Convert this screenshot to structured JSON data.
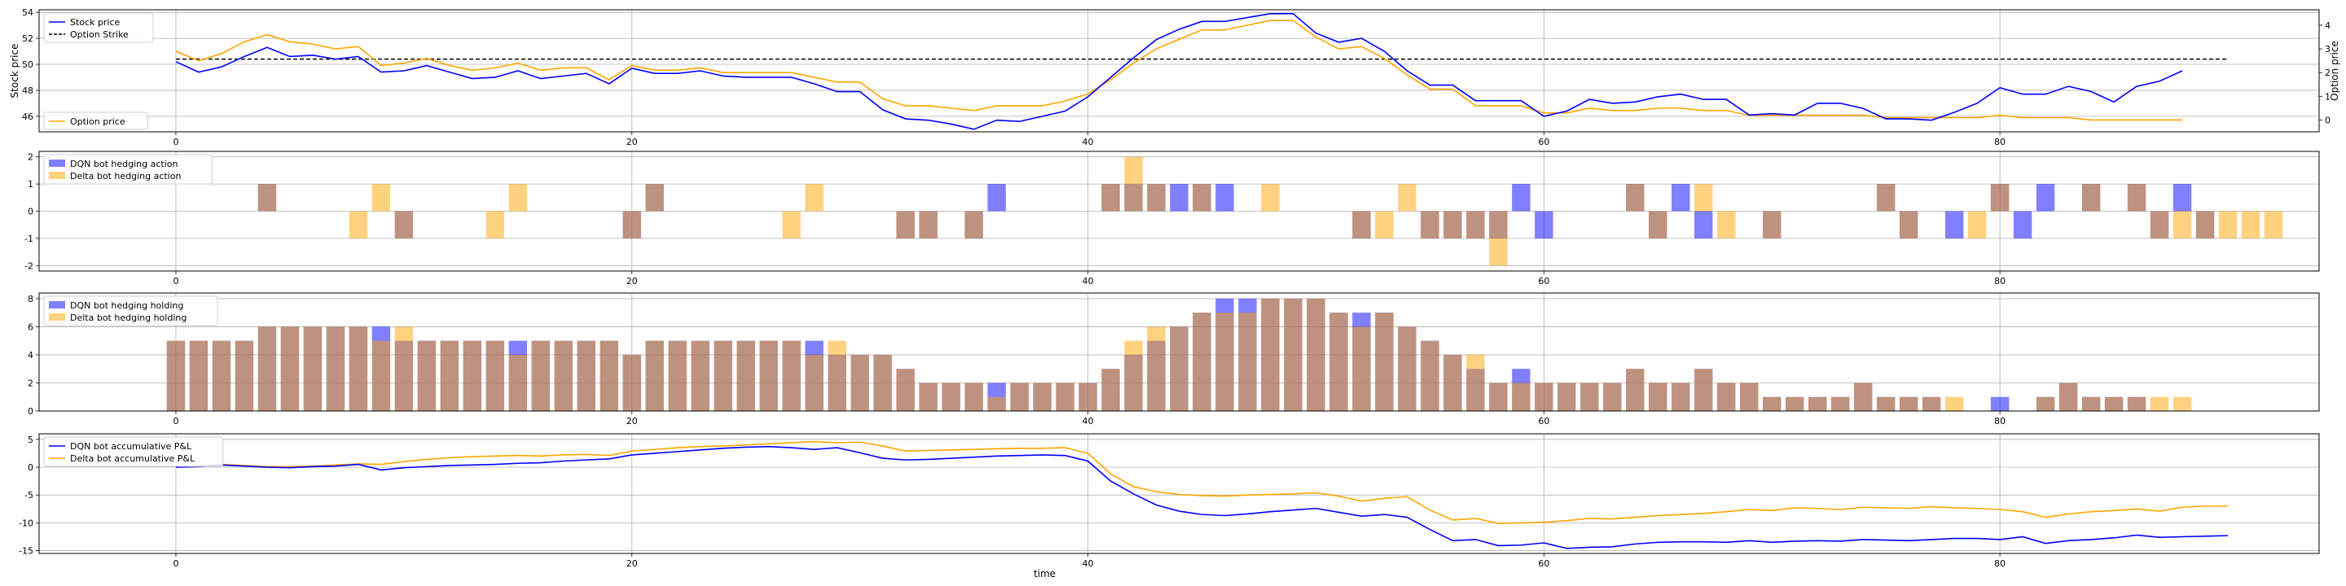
{
  "figure": {
    "type": "multi-panel time series"
  },
  "colors": {
    "dqn": "#0000ff",
    "delta": "#ffa500",
    "overlap": "#c19580",
    "strike": "#000000",
    "grid": "#b0b0b0"
  },
  "chart_data": [
    {
      "type": "line",
      "id": "price",
      "ylabel": "Stock price",
      "ylabel_right": "Option price",
      "xlim": [
        -6,
        94
      ],
      "ylim": [
        44.8,
        54.2
      ],
      "ylim_right": [
        -0.5,
        4.65
      ],
      "yticks": [
        46,
        48,
        50,
        52,
        54
      ],
      "yticks_right": [
        0,
        1,
        2,
        3,
        4
      ],
      "xticks": [
        0,
        20,
        40,
        60,
        80
      ],
      "grid": true,
      "legend_top": [
        "Stock price",
        "Option Strike"
      ],
      "legend_bottom": [
        "Option price"
      ],
      "strike": {
        "value": 50.4,
        "x_range": [
          0,
          90
        ]
      },
      "series": [
        {
          "name": "Stock price",
          "axis": "left",
          "color": "#0000ff",
          "values": [
            50.2,
            49.4,
            49.8,
            50.6,
            51.3,
            50.6,
            50.7,
            50.4,
            50.6,
            49.4,
            49.5,
            49.9,
            49.4,
            48.9,
            49.0,
            49.5,
            48.9,
            49.1,
            49.3,
            48.5,
            49.7,
            49.3,
            49.3,
            49.5,
            49.1,
            49.0,
            49.0,
            49.0,
            48.5,
            47.9,
            47.9,
            46.5,
            45.8,
            45.7,
            45.4,
            45.0,
            45.7,
            45.6,
            46.0,
            46.4,
            47.5,
            49.0,
            50.5,
            51.9,
            52.7,
            53.3,
            53.3,
            53.6,
            53.9,
            53.9,
            52.4,
            51.7,
            52.0,
            51.0,
            49.5,
            48.4,
            48.4,
            47.2,
            47.2,
            47.2,
            46.0,
            46.4,
            47.3,
            47.0,
            47.1,
            47.5,
            47.7,
            47.3,
            47.3,
            46.1,
            46.2,
            46.1,
            47.0,
            47.0,
            46.6,
            45.8,
            45.8,
            45.7,
            46.3,
            47.0,
            48.2,
            47.7,
            47.7,
            48.3,
            47.9,
            47.1,
            48.3,
            48.7,
            49.5
          ]
        },
        {
          "name": "Option price",
          "axis": "right",
          "color": "#ffa500",
          "values": [
            2.9,
            2.5,
            2.8,
            3.3,
            3.6,
            3.3,
            3.2,
            3.0,
            3.1,
            2.3,
            2.4,
            2.6,
            2.3,
            2.1,
            2.2,
            2.4,
            2.1,
            2.2,
            2.2,
            1.7,
            2.3,
            2.1,
            2.1,
            2.2,
            2.0,
            2.0,
            2.0,
            2.0,
            1.8,
            1.6,
            1.6,
            0.9,
            0.6,
            0.6,
            0.5,
            0.4,
            0.6,
            0.6,
            0.6,
            0.8,
            1.1,
            1.7,
            2.4,
            3.0,
            3.4,
            3.8,
            3.8,
            4.0,
            4.2,
            4.2,
            3.5,
            3.0,
            3.1,
            2.6,
            1.9,
            1.3,
            1.3,
            0.6,
            0.6,
            0.6,
            0.3,
            0.3,
            0.5,
            0.4,
            0.4,
            0.5,
            0.5,
            0.4,
            0.4,
            0.2,
            0.2,
            0.2,
            0.2,
            0.2,
            0.2,
            0.1,
            0.1,
            0.1,
            0.1,
            0.1,
            0.2,
            0.1,
            0.1,
            0.1,
            0.0,
            0.0,
            0.0,
            0.0,
            0.0
          ]
        }
      ]
    },
    {
      "type": "bar",
      "id": "actions",
      "xlim": [
        -6,
        94
      ],
      "ylim": [
        -2.2,
        2.2
      ],
      "yticks": [
        -2,
        -1,
        0,
        1,
        2
      ],
      "xticks": [
        0,
        20,
        40,
        60,
        80
      ],
      "grid": true,
      "legend": [
        "DQN bot hedging action",
        "Delta bot hedging action"
      ],
      "series": [
        {
          "name": "DQN bot hedging action",
          "color": "#0000ff",
          "values": [
            0,
            0,
            0,
            0,
            1,
            0,
            0,
            0,
            0,
            0,
            -1,
            0,
            0,
            0,
            0,
            0,
            0,
            0,
            0,
            0,
            -1,
            1,
            0,
            0,
            0,
            0,
            0,
            0,
            0,
            0,
            0,
            0,
            -1,
            -1,
            0,
            -1,
            1,
            0,
            0,
            0,
            0,
            1,
            1,
            1,
            1,
            1,
            1,
            0,
            0,
            0,
            0,
            0,
            -1,
            0,
            0,
            -1,
            -1,
            -1,
            -1,
            1,
            -1,
            0,
            0,
            0,
            1,
            -1,
            1,
            -1,
            0,
            0,
            -1,
            0,
            0,
            0,
            0,
            1,
            -1,
            0,
            -1,
            0,
            1,
            -1,
            1,
            0,
            1,
            0,
            1,
            -1,
            1,
            -1,
            0,
            0,
            0,
            0,
            0,
            0,
            0,
            0,
            0,
            0,
            0,
            0,
            0,
            0,
            0
          ]
        },
        {
          "name": "Delta bot hedging action",
          "color": "#ffa500",
          "values": [
            0,
            0,
            0,
            0,
            1,
            0,
            0,
            0,
            -1,
            1,
            -1,
            0,
            0,
            0,
            -1,
            1,
            0,
            0,
            0,
            0,
            -1,
            1,
            0,
            0,
            0,
            0,
            0,
            -1,
            1,
            0,
            0,
            0,
            -1,
            -1,
            0,
            -1,
            0,
            0,
            0,
            0,
            0,
            1,
            2,
            1,
            0,
            1,
            0,
            0,
            1,
            0,
            0,
            0,
            -1,
            -1,
            1,
            -1,
            -1,
            -1,
            -2,
            0,
            0,
            0,
            0,
            0,
            1,
            -1,
            0,
            1,
            -1,
            0,
            -1,
            0,
            0,
            0,
            0,
            1,
            -1,
            0,
            0,
            -1,
            1,
            0,
            0,
            0,
            1,
            0,
            1,
            -1,
            -1,
            -1,
            -1,
            -1,
            -1,
            0,
            0,
            0,
            0,
            0,
            0,
            0,
            0,
            0,
            0,
            0,
            0
          ]
        }
      ]
    },
    {
      "type": "bar",
      "id": "holdings",
      "xlim": [
        -6,
        94
      ],
      "ylim": [
        0,
        8.4
      ],
      "yticks": [
        0,
        2,
        4,
        6,
        8
      ],
      "xticks": [
        0,
        20,
        40,
        60,
        80
      ],
      "grid": true,
      "legend": [
        "DQN bot hedging holding",
        "Delta bot hedging holding"
      ],
      "series": [
        {
          "name": "DQN bot hedging holding",
          "color": "#0000ff",
          "values": [
            5,
            5,
            5,
            5,
            6,
            6,
            6,
            6,
            6,
            6,
            5,
            5,
            5,
            5,
            5,
            5,
            5,
            5,
            5,
            5,
            4,
            5,
            5,
            5,
            5,
            5,
            5,
            5,
            5,
            4,
            4,
            4,
            3,
            2,
            2,
            2,
            2,
            2,
            2,
            2,
            2,
            3,
            4,
            5,
            6,
            7,
            8,
            8,
            8,
            8,
            8,
            7,
            7,
            7,
            6,
            5,
            4,
            3,
            2,
            3,
            2,
            2,
            2,
            2,
            3,
            2,
            2,
            3,
            2,
            2,
            1,
            1,
            1,
            1,
            2,
            1,
            1,
            1,
            0,
            0,
            1,
            0,
            1,
            2,
            1,
            1,
            1,
            0,
            0,
            0
          ]
        },
        {
          "name": "Delta bot hedging holding",
          "color": "#ffa500",
          "values": [
            5,
            5,
            5,
            5,
            6,
            6,
            6,
            6,
            6,
            5,
            6,
            5,
            5,
            5,
            5,
            4,
            5,
            5,
            5,
            5,
            4,
            5,
            5,
            5,
            5,
            5,
            5,
            5,
            4,
            5,
            4,
            4,
            3,
            2,
            2,
            2,
            1,
            2,
            2,
            2,
            2,
            3,
            5,
            6,
            6,
            7,
            7,
            7,
            8,
            8,
            8,
            7,
            6,
            7,
            6,
            5,
            4,
            4,
            2,
            2,
            2,
            2,
            2,
            2,
            3,
            2,
            2,
            3,
            2,
            2,
            1,
            1,
            1,
            1,
            2,
            1,
            1,
            1,
            1,
            0,
            0,
            0,
            1,
            2,
            1,
            1,
            1,
            1,
            1,
            0
          ]
        }
      ]
    },
    {
      "type": "line",
      "id": "pnl",
      "xlabel": "time",
      "xlim": [
        -6,
        94
      ],
      "ylim": [
        -15.5,
        6.0
      ],
      "yticks": [
        -15,
        -10,
        -5,
        0,
        5
      ],
      "xticks": [
        0,
        20,
        40,
        60,
        80
      ],
      "grid": true,
      "legend": [
        "DQN bot accumulative P&L",
        "Delta bot accumulative P&L"
      ],
      "series": [
        {
          "name": "DQN bot accumulative P&L",
          "color": "#0000ff",
          "values": [
            0.0,
            0.1,
            0.4,
            0.2,
            0.0,
            -0.1,
            0.1,
            0.2,
            0.5,
            -0.5,
            -0.1,
            0.1,
            0.3,
            0.4,
            0.5,
            0.7,
            0.8,
            1.1,
            1.3,
            1.5,
            2.2,
            2.5,
            2.8,
            3.1,
            3.4,
            3.6,
            3.7,
            3.5,
            3.2,
            3.5,
            2.6,
            1.6,
            1.3,
            1.4,
            1.6,
            1.8,
            2.0,
            2.1,
            2.2,
            2.1,
            1.1,
            -2.5,
            -4.8,
            -6.8,
            -7.9,
            -8.5,
            -8.7,
            -8.4,
            -8.0,
            -7.7,
            -7.4,
            -8.1,
            -8.8,
            -8.5,
            -9.0,
            -11.2,
            -13.2,
            -13.0,
            -14.1,
            -14.0,
            -13.6,
            -14.6,
            -14.4,
            -14.3,
            -13.8,
            -13.5,
            -13.4,
            -13.4,
            -13.5,
            -13.2,
            -13.5,
            -13.3,
            -13.2,
            -13.3,
            -13.0,
            -13.1,
            -13.2,
            -13.0,
            -12.8,
            -12.8,
            -13.0,
            -12.5,
            -13.7,
            -13.2,
            -13.0,
            -12.7,
            -12.2,
            -12.6,
            -12.5,
            -12.4,
            -12.3
          ]
        },
        {
          "name": "Delta bot accumulative P&L",
          "color": "#ffa500",
          "values": [
            0.0,
            0.3,
            0.5,
            0.3,
            0.1,
            0.1,
            0.2,
            0.4,
            0.6,
            0.5,
            1.0,
            1.4,
            1.7,
            1.9,
            2.0,
            2.1,
            2.0,
            2.2,
            2.3,
            2.1,
            2.9,
            3.2,
            3.5,
            3.7,
            3.8,
            4.0,
            4.2,
            4.4,
            4.6,
            4.4,
            4.5,
            3.8,
            2.9,
            3.0,
            3.1,
            3.2,
            3.3,
            3.4,
            3.4,
            3.5,
            2.5,
            -1.2,
            -3.5,
            -4.4,
            -4.9,
            -5.1,
            -5.2,
            -5.0,
            -4.9,
            -4.8,
            -4.6,
            -5.2,
            -6.1,
            -5.6,
            -5.3,
            -7.7,
            -9.5,
            -9.2,
            -10.1,
            -10.0,
            -9.9,
            -9.6,
            -9.2,
            -9.3,
            -9.0,
            -8.7,
            -8.5,
            -8.3,
            -8.0,
            -7.6,
            -7.8,
            -7.3,
            -7.4,
            -7.6,
            -7.2,
            -7.3,
            -7.4,
            -7.1,
            -7.3,
            -7.4,
            -7.6,
            -8.0,
            -9.0,
            -8.4,
            -8.0,
            -7.8,
            -7.5,
            -7.9,
            -7.2,
            -7.0,
            -7.0
          ]
        }
      ]
    }
  ]
}
